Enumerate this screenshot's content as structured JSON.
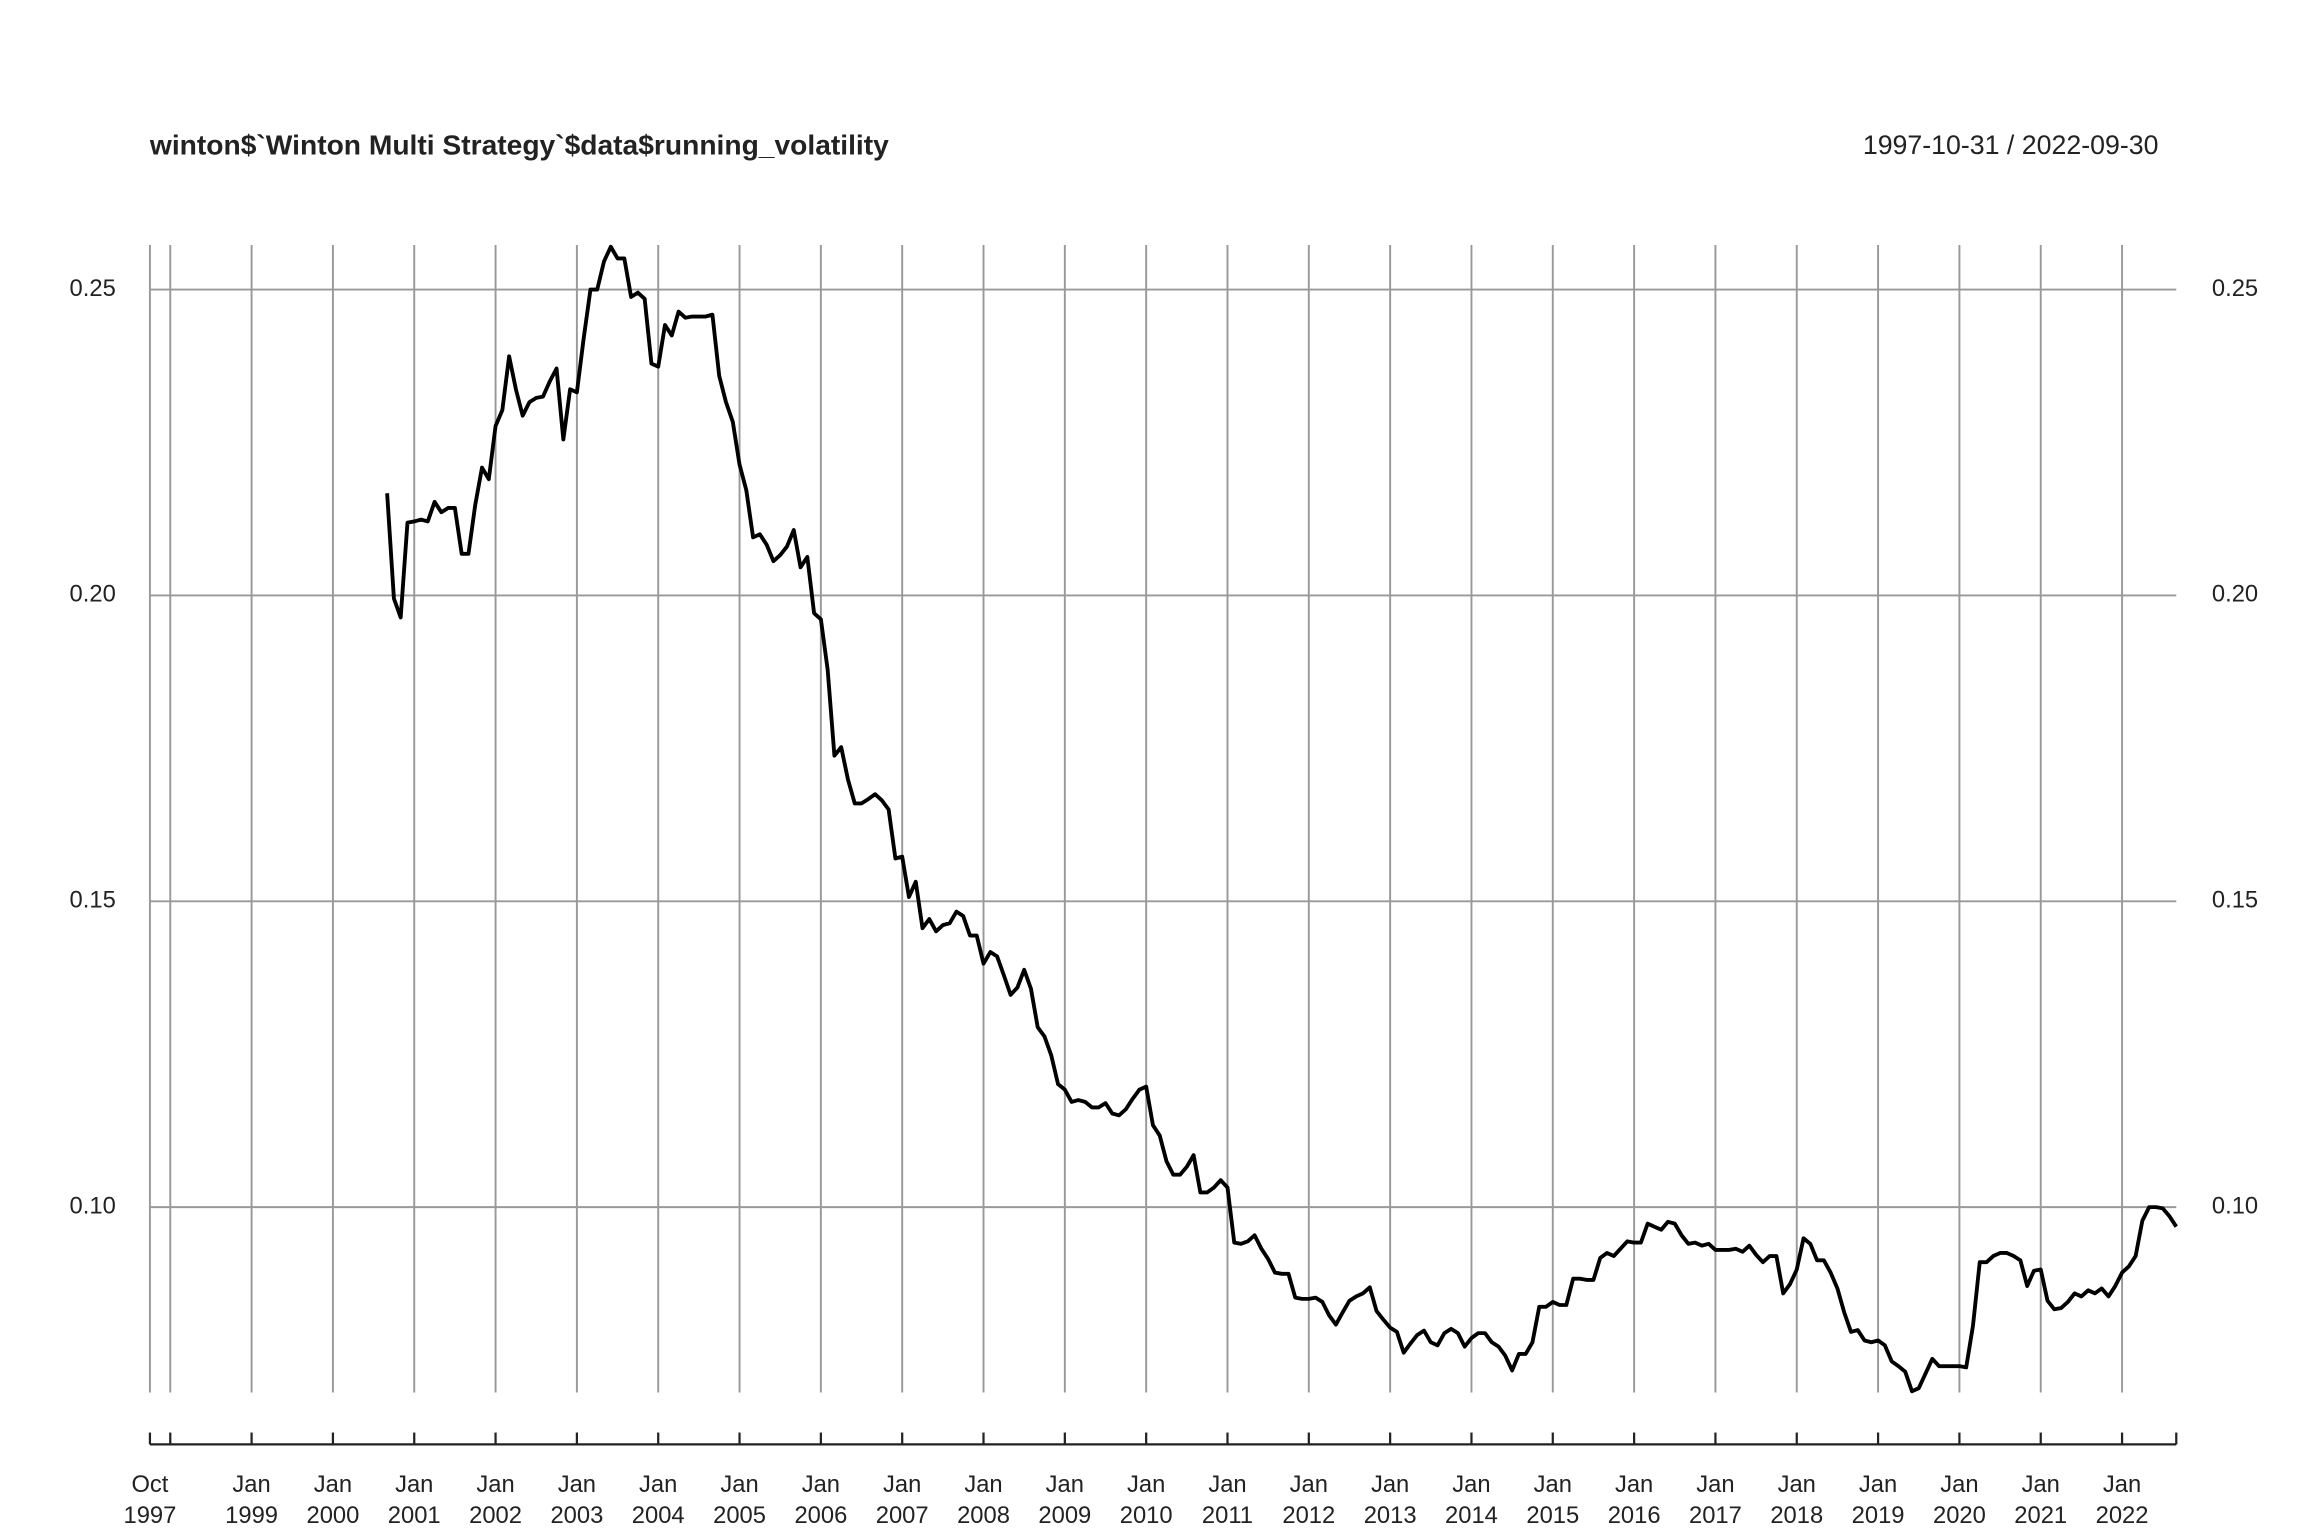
{
  "chart_data": {
    "type": "line",
    "title": "winton$`Winton Multi Strategy`$data$running_volatility",
    "subtitle": "1997-10-31 / 2022-09-30",
    "color": "#000000",
    "grid": true,
    "xlim": [
      "1997-10",
      "2022-09"
    ],
    "xticks": [
      {
        "value": "1997-10",
        "label": "Oct 1997"
      },
      {
        "value": "1998-01",
        "label": null
      },
      {
        "value": "1999-01",
        "label": "Jan 1999"
      },
      {
        "value": "2000-01",
        "label": "Jan 2000"
      },
      {
        "value": "2001-01",
        "label": "Jan 2001"
      },
      {
        "value": "2002-01",
        "label": "Jan 2002"
      },
      {
        "value": "2003-01",
        "label": "Jan 2003"
      },
      {
        "value": "2004-01",
        "label": "Jan 2004"
      },
      {
        "value": "2005-01",
        "label": "Jan 2005"
      },
      {
        "value": "2006-01",
        "label": "Jan 2006"
      },
      {
        "value": "2007-01",
        "label": "Jan 2007"
      },
      {
        "value": "2008-01",
        "label": "Jan 2008"
      },
      {
        "value": "2009-01",
        "label": "Jan 2009"
      },
      {
        "value": "2010-01",
        "label": "Jan 2010"
      },
      {
        "value": "2011-01",
        "label": "Jan 2011"
      },
      {
        "value": "2012-01",
        "label": "Jan 2012"
      },
      {
        "value": "2013-01",
        "label": "Jan 2013"
      },
      {
        "value": "2014-01",
        "label": "Jan 2014"
      },
      {
        "value": "2015-01",
        "label": "Jan 2015"
      },
      {
        "value": "2016-01",
        "label": "Jan 2016"
      },
      {
        "value": "2017-01",
        "label": "Jan 2017"
      },
      {
        "value": "2018-01",
        "label": "Jan 2018"
      },
      {
        "value": "2019-01",
        "label": "Jan 2019"
      },
      {
        "value": "2020-01",
        "label": "Jan 2020"
      },
      {
        "value": "2021-01",
        "label": "Jan 2021"
      },
      {
        "value": "2022-01",
        "label": "Jan 2022"
      }
    ],
    "ylim": [
      0.0697,
      0.2573
    ],
    "yticks": [
      {
        "value": 0.1,
        "label": "0.10"
      },
      0.15,
      {
        "value": 0.2,
        "label": "0.20"
      },
      0.25
    ],
    "x": [
      "2000-09",
      "2000-10",
      "2000-11",
      "2000-12",
      "2001-01",
      "2001-02",
      "2001-03",
      "2001-04",
      "2001-05",
      "2001-06",
      "2001-07",
      "2001-08",
      "2001-09",
      "2001-10",
      "2001-11",
      "2001-12",
      "2002-01",
      "2002-02",
      "2002-03",
      "2002-04",
      "2002-05",
      "2002-06",
      "2002-07",
      "2002-08",
      "2002-09",
      "2002-10",
      "2002-11",
      "2002-12",
      "2003-01",
      "2003-02",
      "2003-03",
      "2003-04",
      "2003-05",
      "2003-06",
      "2003-07",
      "2003-08",
      "2003-09",
      "2003-10",
      "2003-11",
      "2003-12",
      "2004-01",
      "2004-02",
      "2004-03",
      "2004-04",
      "2004-05",
      "2004-06",
      "2004-07",
      "2004-08",
      "2004-09",
      "2004-10",
      "2004-11",
      "2004-12",
      "2005-01",
      "2005-02",
      "2005-03",
      "2005-04",
      "2005-05",
      "2005-06",
      "2005-07",
      "2005-08",
      "2005-09",
      "2005-10",
      "2005-11",
      "2005-12",
      "2006-01",
      "2006-02",
      "2006-03",
      "2006-04",
      "2006-05",
      "2006-06",
      "2006-07",
      "2006-08",
      "2006-09",
      "2006-10",
      "2006-11",
      "2006-12",
      "2007-01",
      "2007-02",
      "2007-03",
      "2007-04",
      "2007-05",
      "2007-06",
      "2007-07",
      "2007-08",
      "2007-09",
      "2007-10",
      "2007-11",
      "2007-12",
      "2008-01",
      "2008-02",
      "2008-03",
      "2008-04",
      "2008-05",
      "2008-06",
      "2008-07",
      "2008-08",
      "2008-09",
      "2008-10",
      "2008-11",
      "2008-12",
      "2009-01",
      "2009-02",
      "2009-03",
      "2009-04",
      "2009-05",
      "2009-06",
      "2009-07",
      "2009-08",
      "2009-09",
      "2009-10",
      "2009-11",
      "2009-12",
      "2010-01",
      "2010-02",
      "2010-03",
      "2010-04",
      "2010-05",
      "2010-06",
      "2010-07",
      "2010-08",
      "2010-09",
      "2010-10",
      "2010-11",
      "2010-12",
      "2011-01",
      "2011-02",
      "2011-03",
      "2011-04",
      "2011-05",
      "2011-06",
      "2011-07",
      "2011-08",
      "2011-09",
      "2011-10",
      "2011-11",
      "2011-12",
      "2012-01",
      "2012-02",
      "2012-03",
      "2012-04",
      "2012-05",
      "2012-06",
      "2012-07",
      "2012-08",
      "2012-09",
      "2012-10",
      "2012-11",
      "2012-12",
      "2013-01",
      "2013-02",
      "2013-03",
      "2013-04",
      "2013-05",
      "2013-06",
      "2013-07",
      "2013-08",
      "2013-09",
      "2013-10",
      "2013-11",
      "2013-12",
      "2014-01",
      "2014-02",
      "2014-03",
      "2014-04",
      "2014-05",
      "2014-06",
      "2014-07",
      "2014-08",
      "2014-09",
      "2014-10",
      "2014-11",
      "2014-12",
      "2015-01",
      "2015-02",
      "2015-03",
      "2015-04",
      "2015-05",
      "2015-06",
      "2015-07",
      "2015-08",
      "2015-09",
      "2015-10",
      "2015-11",
      "2015-12",
      "2016-01",
      "2016-02",
      "2016-03",
      "2016-04",
      "2016-05",
      "2016-06",
      "2016-07",
      "2016-08",
      "2016-09",
      "2016-10",
      "2016-11",
      "2016-12",
      "2017-01",
      "2017-02",
      "2017-03",
      "2017-04",
      "2017-05",
      "2017-06",
      "2017-07",
      "2017-08",
      "2017-09",
      "2017-10",
      "2017-11",
      "2017-12",
      "2018-01",
      "2018-02",
      "2018-03",
      "2018-04",
      "2018-05",
      "2018-06",
      "2018-07",
      "2018-08",
      "2018-09",
      "2018-10",
      "2018-11",
      "2018-12",
      "2019-01",
      "2019-02",
      "2019-03",
      "2019-04",
      "2019-05",
      "2019-06",
      "2019-07",
      "2019-08",
      "2019-09",
      "2019-10",
      "2019-11",
      "2019-12",
      "2020-01",
      "2020-02",
      "2020-03",
      "2020-04",
      "2020-05",
      "2020-06",
      "2020-07",
      "2020-08",
      "2020-09",
      "2020-10",
      "2020-11",
      "2020-12",
      "2021-01",
      "2021-02",
      "2021-03",
      "2021-04",
      "2021-05",
      "2021-06",
      "2021-07",
      "2021-08",
      "2021-09",
      "2021-10",
      "2021-11",
      "2021-12",
      "2022-01",
      "2022-02",
      "2022-03",
      "2022-04",
      "2022-05",
      "2022-06",
      "2022-07",
      "2022-08",
      "2022-09"
    ],
    "values": [
      0.2167,
      0.1995,
      0.1964,
      0.2119,
      0.2121,
      0.2124,
      0.2121,
      0.2153,
      0.2136,
      0.2143,
      0.2143,
      0.2068,
      0.2068,
      0.2148,
      0.2209,
      0.219,
      0.2277,
      0.2303,
      0.2391,
      0.2337,
      0.2294,
      0.2316,
      0.2323,
      0.2325,
      0.235,
      0.2371,
      0.2255,
      0.2337,
      0.2332,
      0.242,
      0.25,
      0.25,
      0.2546,
      0.257,
      0.2551,
      0.2551,
      0.2488,
      0.2495,
      0.2485,
      0.2379,
      0.2374,
      0.2442,
      0.2425,
      0.2464,
      0.2454,
      0.2456,
      0.2456,
      0.2456,
      0.2459,
      0.2359,
      0.2316,
      0.2284,
      0.2214,
      0.2172,
      0.2095,
      0.21,
      0.2083,
      0.2056,
      0.2066,
      0.208,
      0.2107,
      0.2046,
      0.2063,
      0.1971,
      0.1961,
      0.1879,
      0.1738,
      0.1752,
      0.1699,
      0.166,
      0.166,
      0.1667,
      0.1675,
      0.1665,
      0.165,
      0.157,
      0.1573,
      0.1507,
      0.1532,
      0.1456,
      0.1471,
      0.1451,
      0.1461,
      0.1464,
      0.1483,
      0.1476,
      0.1444,
      0.1444,
      0.1398,
      0.1417,
      0.141,
      0.1379,
      0.1347,
      0.1359,
      0.1388,
      0.1357,
      0.1294,
      0.1279,
      0.1248,
      0.1201,
      0.1192,
      0.1172,
      0.1175,
      0.1172,
      0.1163,
      0.1163,
      0.117,
      0.1153,
      0.115,
      0.116,
      0.1177,
      0.1192,
      0.1197,
      0.1134,
      0.1117,
      0.1075,
      0.1053,
      0.1053,
      0.1066,
      0.1085,
      0.1024,
      0.1024,
      0.1032,
      0.1044,
      0.1032,
      0.0942,
      0.094,
      0.0944,
      0.0954,
      0.0932,
      0.0915,
      0.0893,
      0.0891,
      0.0891,
      0.0852,
      0.085,
      0.085,
      0.0852,
      0.0845,
      0.0823,
      0.0808,
      0.0828,
      0.0847,
      0.0854,
      0.0859,
      0.0869,
      0.083,
      0.0816,
      0.0803,
      0.0796,
      0.0762,
      0.0777,
      0.0791,
      0.0798,
      0.0779,
      0.0774,
      0.0794,
      0.0801,
      0.0794,
      0.0772,
      0.0786,
      0.0794,
      0.0794,
      0.0779,
      0.0772,
      0.0757,
      0.0733,
      0.076,
      0.076,
      0.0779,
      0.0837,
      0.0837,
      0.0845,
      0.084,
      0.084,
      0.0883,
      0.0883,
      0.0881,
      0.0881,
      0.0917,
      0.0925,
      0.092,
      0.0932,
      0.0944,
      0.0942,
      0.0942,
      0.0973,
      0.0968,
      0.0963,
      0.0976,
      0.0973,
      0.0954,
      0.094,
      0.0942,
      0.0937,
      0.094,
      0.093,
      0.093,
      0.093,
      0.0932,
      0.0927,
      0.0937,
      0.0922,
      0.091,
      0.092,
      0.092,
      0.0859,
      0.0874,
      0.0898,
      0.0949,
      0.094,
      0.0913,
      0.0913,
      0.0893,
      0.0867,
      0.0828,
      0.0796,
      0.0799,
      0.0782,
      0.0779,
      0.0782,
      0.0774,
      0.0748,
      0.074,
      0.0731,
      0.0699,
      0.0704,
      0.0728,
      0.0752,
      0.074,
      0.074,
      0.074,
      0.074,
      0.0738,
      0.0806,
      0.091,
      0.091,
      0.092,
      0.0925,
      0.0925,
      0.092,
      0.0913,
      0.0871,
      0.0896,
      0.0898,
      0.0847,
      0.0833,
      0.0835,
      0.0845,
      0.0859,
      0.0854,
      0.0864,
      0.0859,
      0.0867,
      0.0854,
      0.0871,
      0.0893,
      0.0903,
      0.092,
      0.0978,
      0.1,
      0.1,
      0.0998,
      0.0985,
      0.0968
    ]
  }
}
